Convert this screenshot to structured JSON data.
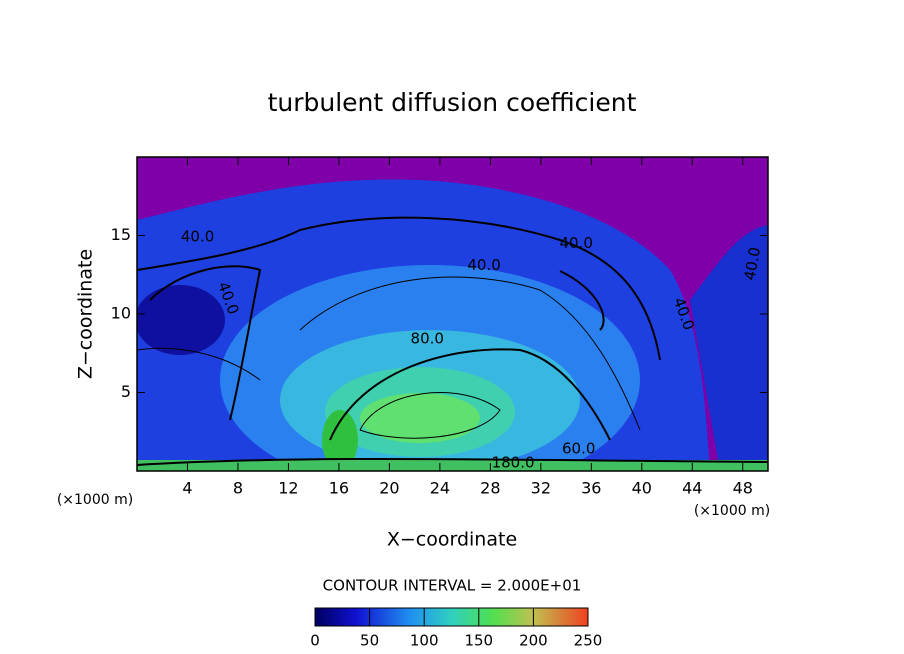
{
  "chart_data": {
    "type": "contour",
    "title": "turbulent diffusion coefficient",
    "x_label": "X−coordinate",
    "y_label": "Z−coordinate",
    "x_unit": "(×1000 m)",
    "xlim": [
      0,
      50
    ],
    "ylim": [
      0,
      20
    ],
    "xticks": [
      4,
      8,
      12,
      16,
      20,
      24,
      28,
      32,
      36,
      40,
      44,
      48
    ],
    "yticks": [
      5,
      10,
      15
    ],
    "contour_labels": [
      {
        "value": 40,
        "label": "40.0"
      },
      {
        "value": 40,
        "label": "40.0"
      },
      {
        "value": 40,
        "label": "40.0"
      },
      {
        "value": 40,
        "label": "40.0"
      },
      {
        "value": 40,
        "label": "40.0"
      },
      {
        "value": 40,
        "label": "40.0"
      },
      {
        "value": 80,
        "label": "80.0"
      },
      {
        "value": 60,
        "label": "60.0"
      },
      {
        "value": 180,
        "label": "180.0"
      }
    ],
    "contour_interval_label": "CONTOUR INTERVAL = 2.000E+01",
    "colorbar": {
      "lim": [
        0,
        250
      ],
      "ticks": [
        0,
        50,
        100,
        150,
        200,
        250
      ]
    }
  }
}
